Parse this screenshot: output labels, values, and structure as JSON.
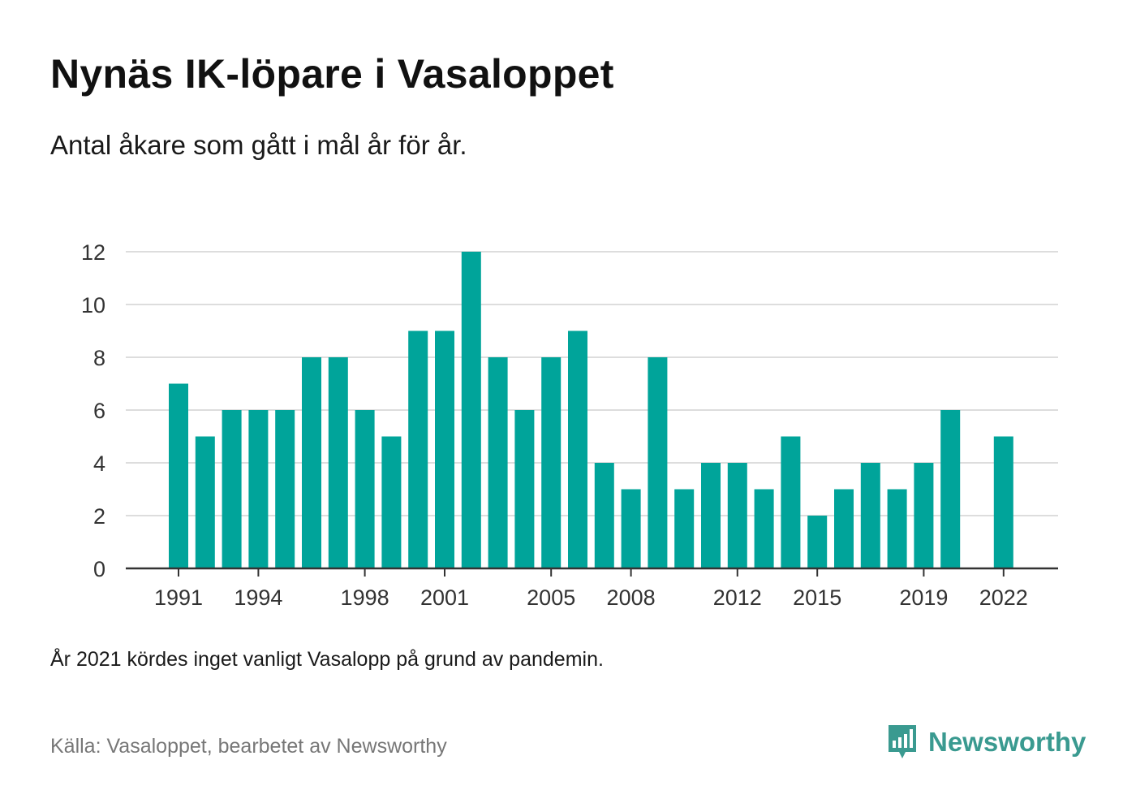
{
  "title": "Nynäs IK-löpare i Vasaloppet",
  "subtitle": "Antal åkare som gått i mål år för år.",
  "note": "År 2021 kördes inget vanligt Vasalopp på grund av pandemin.",
  "source": "Källa: Vasaloppet, bearbetet av Newsworthy",
  "brand": {
    "name": "Newsworthy",
    "icon": "newsworthy-logo-icon",
    "color": "#3a9a90"
  },
  "chart_data": {
    "type": "bar",
    "bar_color": "#00a49a",
    "x": [
      1991,
      1992,
      1993,
      1994,
      1995,
      1996,
      1997,
      1998,
      1999,
      2000,
      2001,
      2002,
      2003,
      2004,
      2005,
      2006,
      2007,
      2008,
      2009,
      2010,
      2011,
      2012,
      2013,
      2014,
      2015,
      2016,
      2017,
      2018,
      2019,
      2020,
      2021,
      2022
    ],
    "values": [
      7,
      5,
      6,
      6,
      6,
      8,
      8,
      6,
      5,
      9,
      9,
      12,
      8,
      6,
      8,
      9,
      4,
      3,
      8,
      3,
      4,
      4,
      3,
      5,
      2,
      3,
      4,
      3,
      4,
      6,
      null,
      5
    ],
    "x_tick_labels": [
      "1991",
      "1994",
      "1998",
      "2001",
      "2005",
      "2008",
      "2012",
      "2015",
      "2019",
      "2022"
    ],
    "y_ticks": [
      0,
      2,
      4,
      6,
      8,
      10,
      12
    ],
    "ylim": [
      0,
      12
    ],
    "grid": true,
    "xlabel": "",
    "ylabel": ""
  }
}
